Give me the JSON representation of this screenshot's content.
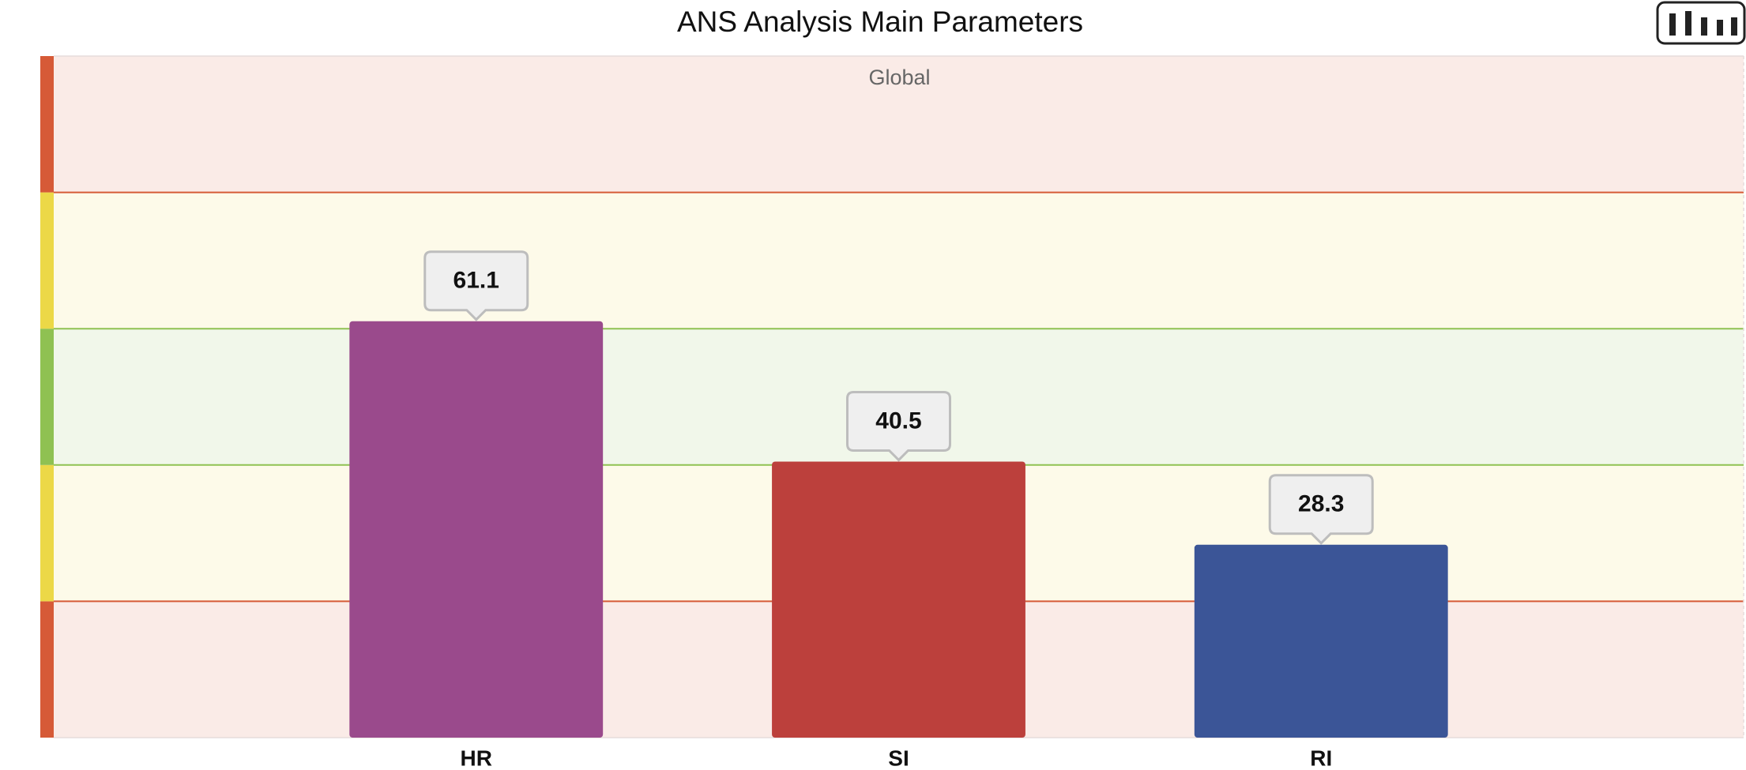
{
  "chart_data": {
    "type": "bar",
    "title": "ANS Analysis Main Parameters",
    "annotation": "Global",
    "categories": [
      "HR",
      "SI",
      "RI"
    ],
    "values": [
      61.1,
      40.5,
      28.3
    ],
    "colors": [
      "#9a4a8c",
      "#bc403c",
      "#3b5597"
    ],
    "ylim": [
      0,
      100
    ],
    "zone_colors": [
      "#d65a37",
      "#ecd847",
      "#8fc152",
      "#ecd847",
      "#d65a37"
    ]
  }
}
